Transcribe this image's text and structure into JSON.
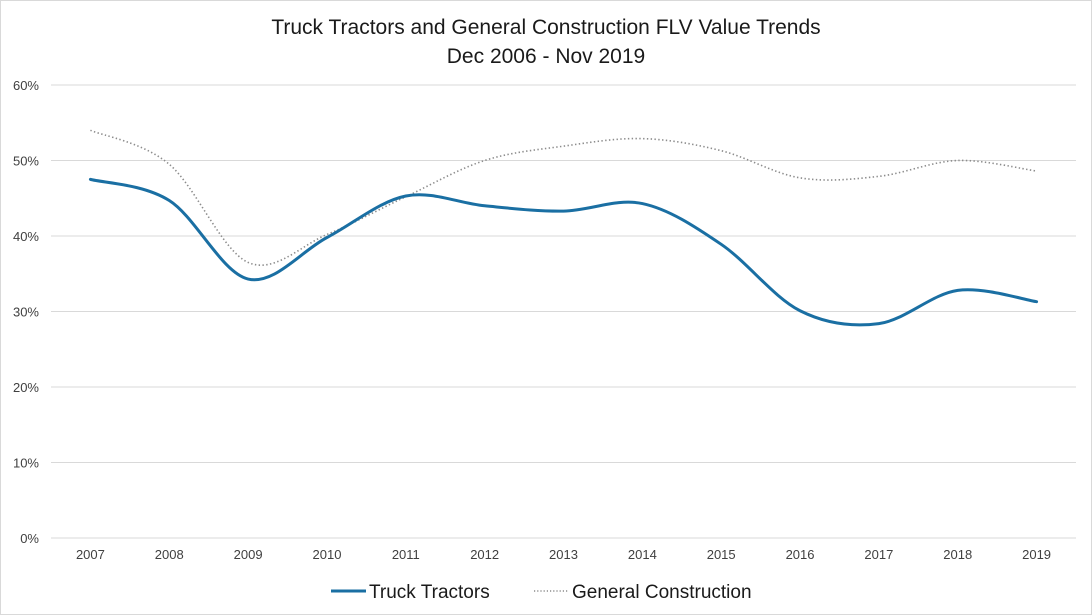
{
  "chart_data": {
    "type": "line",
    "title": "Truck Tractors and General Construction FLV Value Trends",
    "subtitle": "Dec 2006 - Nov 2019",
    "xlabel": "",
    "ylabel": "",
    "categories": [
      "2007",
      "2008",
      "2009",
      "2010",
      "2011",
      "2012",
      "2013",
      "2014",
      "2015",
      "2016",
      "2017",
      "2018",
      "2019"
    ],
    "ylim": [
      0,
      60
    ],
    "yticks": [
      "0%",
      "10%",
      "20%",
      "30%",
      "40%",
      "50%",
      "60%"
    ],
    "ytick_values": [
      0,
      10,
      20,
      30,
      40,
      50,
      60
    ],
    "grid": true,
    "legend_position": "bottom",
    "smooth": true,
    "series": [
      {
        "name": "Truck Tractors",
        "color": "#1a6fa3",
        "style": "solid",
        "values": [
          47.5,
          44.7,
          34.3,
          39.8,
          45.3,
          44.0,
          43.3,
          44.3,
          38.9,
          30.1,
          28.4,
          32.8,
          31.3
        ]
      },
      {
        "name": "General Construction",
        "color": "#8c8c8c",
        "style": "dotted",
        "values": [
          54.0,
          49.5,
          36.5,
          40.2,
          45.2,
          50.0,
          51.9,
          52.9,
          51.3,
          47.7,
          47.9,
          50.0,
          48.6
        ]
      }
    ]
  }
}
